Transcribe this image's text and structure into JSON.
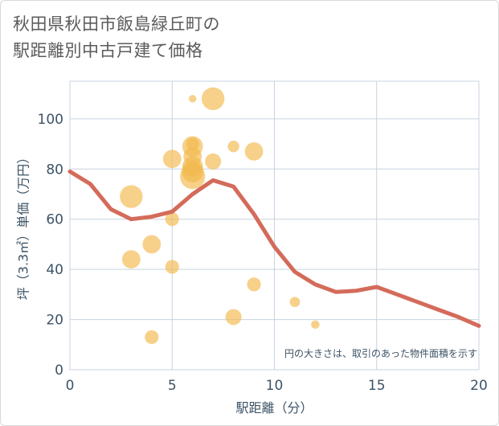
{
  "chart_data": {
    "type": "scatter",
    "title_line1": "秋田県秋田市飯島緑丘町の",
    "title_line2": "駅距離別中古戸建て価格",
    "xlabel": "駅距離（分）",
    "ylabel": "坪（3.3㎡）単価（万円）",
    "note": "円の大きさは、取引のあった物件面積を示す",
    "xlim": [
      0,
      20
    ],
    "ylim": [
      0,
      115
    ],
    "x_ticks": [
      0,
      5,
      10,
      15,
      20
    ],
    "y_ticks": [
      0,
      20,
      40,
      60,
      80,
      100
    ],
    "x_tick_labels": [
      "0",
      "5",
      "10",
      "15",
      "20"
    ],
    "y_tick_labels": [
      "0",
      "20",
      "40",
      "60",
      "80",
      "100"
    ],
    "colors": {
      "bubble": "#f2b84b",
      "line": "#d46b5a",
      "grid": "#c8d3df",
      "axis": "#3d5366"
    },
    "bubbles": [
      {
        "x": 3,
        "y": 69,
        "size": 4
      },
      {
        "x": 3,
        "y": 44,
        "size": 3
      },
      {
        "x": 4,
        "y": 50,
        "size": 3
      },
      {
        "x": 4,
        "y": 13,
        "size": 2
      },
      {
        "x": 5,
        "y": 84,
        "size": 3
      },
      {
        "x": 5,
        "y": 60,
        "size": 2
      },
      {
        "x": 5,
        "y": 41,
        "size": 2
      },
      {
        "x": 6,
        "y": 108,
        "size": 0.6
      },
      {
        "x": 6,
        "y": 89,
        "size": 3.5
      },
      {
        "x": 6,
        "y": 90,
        "size": 1.8
      },
      {
        "x": 6,
        "y": 85,
        "size": 3
      },
      {
        "x": 6,
        "y": 81,
        "size": 3.5
      },
      {
        "x": 6,
        "y": 79,
        "size": 3.8
      },
      {
        "x": 6,
        "y": 77,
        "size": 4.5
      },
      {
        "x": 7,
        "y": 108,
        "size": 4
      },
      {
        "x": 7,
        "y": 83,
        "size": 2.5
      },
      {
        "x": 8,
        "y": 89,
        "size": 1.5
      },
      {
        "x": 8,
        "y": 21,
        "size": 2.5
      },
      {
        "x": 9,
        "y": 87,
        "size": 3
      },
      {
        "x": 9,
        "y": 34,
        "size": 2
      },
      {
        "x": 11,
        "y": 27,
        "size": 1.2
      },
      {
        "x": 12,
        "y": 18,
        "size": 0.8
      }
    ],
    "trend": {
      "x": [
        0,
        1,
        2,
        3,
        4,
        5,
        6,
        7,
        8,
        9,
        10,
        11,
        12,
        13,
        14,
        15,
        16,
        17,
        18,
        19,
        20
      ],
      "y": [
        79,
        74,
        64,
        60,
        61,
        63,
        70,
        75.5,
        73,
        62,
        49,
        39,
        34,
        31,
        31.5,
        33,
        30,
        27,
        24,
        21,
        17.5
      ]
    }
  }
}
